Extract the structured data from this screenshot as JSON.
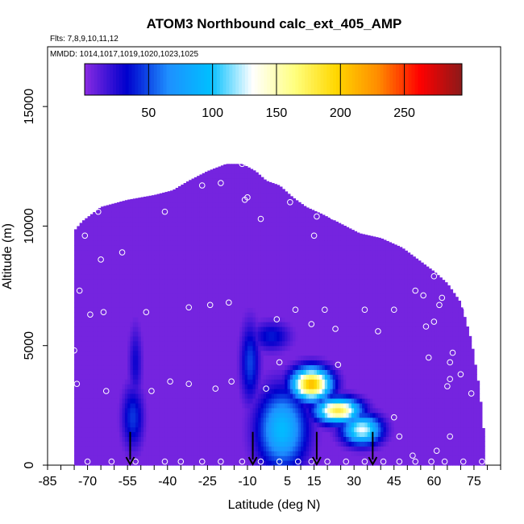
{
  "chart_data": {
    "type": "heatmap",
    "title": "ATOM3 Northbound calc_ext_405_AMP",
    "flights_note": "Flts: 7,8,9,10,11,12",
    "dates_note": "MMDD: 1014,1017,1019,1020,1023,1025",
    "xlabel": "Latitude (deg N)",
    "ylabel": "Altitude (m)",
    "xlim": [
      -85,
      85
    ],
    "ylim": [
      0,
      17500
    ],
    "x_ticks": [
      "-85",
      "-70",
      "-55",
      "-40",
      "-25",
      "-10",
      "5",
      "15",
      "30",
      "45",
      "60",
      "75"
    ],
    "x_tick_values": [
      -85,
      -70,
      -55,
      -40,
      -25,
      -10,
      5,
      15,
      30,
      45,
      60,
      75
    ],
    "y_ticks": [
      "0",
      "5000",
      "10000",
      "15000"
    ],
    "y_tick_values": [
      0,
      5000,
      10000,
      15000
    ],
    "colorbar": {
      "range": [
        0,
        295
      ],
      "tick_labels": [
        "50",
        "100",
        "150",
        "200",
        "250"
      ],
      "tick_values": [
        50,
        100,
        150,
        200,
        250
      ],
      "colors": [
        "#8a2be2",
        "#0000cd",
        "#1e90ff",
        "#00bfff",
        "#ffffff",
        "#ffff80",
        "#ffd700",
        "#ff8c00",
        "#ff0000",
        "#8b1a1a"
      ]
    },
    "background_value": 5,
    "outline": [
      {
        "lat": -75,
        "top": 9800
      },
      {
        "lat": -72,
        "top": 10200
      },
      {
        "lat": -65,
        "top": 10800
      },
      {
        "lat": -55,
        "top": 11100
      },
      {
        "lat": -45,
        "top": 11300
      },
      {
        "lat": -38,
        "top": 11500
      },
      {
        "lat": -32,
        "top": 11900
      },
      {
        "lat": -25,
        "top": 12300
      },
      {
        "lat": -18,
        "top": 12600
      },
      {
        "lat": -12,
        "top": 12600
      },
      {
        "lat": -7,
        "top": 12300
      },
      {
        "lat": -3,
        "top": 11900
      },
      {
        "lat": 2,
        "top": 11700
      },
      {
        "lat": 7,
        "top": 11200
      },
      {
        "lat": 12,
        "top": 10800
      },
      {
        "lat": 18,
        "top": 10500
      },
      {
        "lat": 25,
        "top": 10100
      },
      {
        "lat": 32,
        "top": 9700
      },
      {
        "lat": 40,
        "top": 9500
      },
      {
        "lat": 48,
        "top": 9100
      },
      {
        "lat": 54,
        "top": 8600
      },
      {
        "lat": 60,
        "top": 8100
      },
      {
        "lat": 65,
        "top": 7600
      },
      {
        "lat": 70,
        "top": 6800
      },
      {
        "lat": 74,
        "top": 5200
      },
      {
        "lat": 77,
        "top": 3200
      },
      {
        "lat": 79,
        "top": 1000
      }
    ],
    "plumes": [
      {
        "lat": -53,
        "alt": 2000,
        "dlat": 4,
        "dalt": 1300,
        "value": 45
      },
      {
        "lat": -52,
        "alt": 4300,
        "dlat": 2.5,
        "dalt": 1500,
        "value": 30
      },
      {
        "lat": -9,
        "alt": 4300,
        "dlat": 3.5,
        "dalt": 1600,
        "value": 48
      },
      {
        "lat": -1,
        "alt": 5400,
        "dlat": 7,
        "dalt": 600,
        "value": 38
      },
      {
        "lat": 3,
        "alt": 1500,
        "dlat": 9,
        "dalt": 1600,
        "value": 95
      },
      {
        "lat": 14,
        "alt": 3400,
        "dlat": 7,
        "dalt": 650,
        "value": 210
      },
      {
        "lat": 24,
        "alt": 2300,
        "dlat": 8,
        "dalt": 500,
        "value": 180
      },
      {
        "lat": 33,
        "alt": 1500,
        "dlat": 7,
        "dalt": 600,
        "value": 130
      }
    ],
    "samples": [
      {
        "lat": -75,
        "alt": 4800
      },
      {
        "lat": -74,
        "alt": 3400
      },
      {
        "lat": -73,
        "alt": 7300
      },
      {
        "lat": -71,
        "alt": 9600
      },
      {
        "lat": -69,
        "alt": 6300
      },
      {
        "lat": -66,
        "alt": 10600
      },
      {
        "lat": -65,
        "alt": 8600
      },
      {
        "lat": -64,
        "alt": 6400
      },
      {
        "lat": -63,
        "alt": 3100
      },
      {
        "lat": -57,
        "alt": 8900
      },
      {
        "lat": -48,
        "alt": 6400
      },
      {
        "lat": -46,
        "alt": 3100
      },
      {
        "lat": -41,
        "alt": 10600
      },
      {
        "lat": -39,
        "alt": 3500
      },
      {
        "lat": -32,
        "alt": 6600
      },
      {
        "lat": -32,
        "alt": 3400
      },
      {
        "lat": -27,
        "alt": 11700
      },
      {
        "lat": -24,
        "alt": 6700
      },
      {
        "lat": -22,
        "alt": 3200
      },
      {
        "lat": -20,
        "alt": 11800
      },
      {
        "lat": -17,
        "alt": 6800
      },
      {
        "lat": -16,
        "alt": 3500
      },
      {
        "lat": -12,
        "alt": 12600
      },
      {
        "lat": -11,
        "alt": 11100
      },
      {
        "lat": -10,
        "alt": 11200
      },
      {
        "lat": -5,
        "alt": 10300
      },
      {
        "lat": -3,
        "alt": 3200
      },
      {
        "lat": 1,
        "alt": 6100
      },
      {
        "lat": 2,
        "alt": 4300
      },
      {
        "lat": 6,
        "alt": 11000
      },
      {
        "lat": 8,
        "alt": 6500
      },
      {
        "lat": 15,
        "alt": 9600
      },
      {
        "lat": 16,
        "alt": 10400
      },
      {
        "lat": 14,
        "alt": 5900
      },
      {
        "lat": 19,
        "alt": 6500
      },
      {
        "lat": 22,
        "alt": 10400
      },
      {
        "lat": 23,
        "alt": 5700
      },
      {
        "lat": 24,
        "alt": 4200
      },
      {
        "lat": 34,
        "alt": 6500
      },
      {
        "lat": 39,
        "alt": 5600
      },
      {
        "lat": 45,
        "alt": 6500
      },
      {
        "lat": 45,
        "alt": 2000
      },
      {
        "lat": 47,
        "alt": 1200
      },
      {
        "lat": 52,
        "alt": 400
      },
      {
        "lat": 53,
        "alt": 7300
      },
      {
        "lat": 56,
        "alt": 7100
      },
      {
        "lat": 57,
        "alt": 5800
      },
      {
        "lat": 58,
        "alt": 4500
      },
      {
        "lat": 60,
        "alt": 7900
      },
      {
        "lat": 60,
        "alt": 6000
      },
      {
        "lat": 61,
        "alt": 600
      },
      {
        "lat": 62,
        "alt": 6700
      },
      {
        "lat": 63,
        "alt": 7000
      },
      {
        "lat": 65,
        "alt": 3300
      },
      {
        "lat": 66,
        "alt": 4300
      },
      {
        "lat": 66,
        "alt": 3600
      },
      {
        "lat": 67,
        "alt": 8500
      },
      {
        "lat": 67,
        "alt": 4700
      },
      {
        "lat": 70,
        "alt": 3800
      },
      {
        "lat": 72,
        "alt": 6600
      },
      {
        "lat": 74,
        "alt": 3000
      },
      {
        "lat": 66,
        "alt": 1200
      },
      {
        "lat": -77,
        "alt": 150
      },
      {
        "lat": -70,
        "alt": 150
      },
      {
        "lat": -61,
        "alt": 150
      },
      {
        "lat": -52,
        "alt": 150
      },
      {
        "lat": -41,
        "alt": 150
      },
      {
        "lat": -35,
        "alt": 150
      },
      {
        "lat": -27,
        "alt": 150
      },
      {
        "lat": -20,
        "alt": 150
      },
      {
        "lat": -12,
        "alt": 150
      },
      {
        "lat": -5,
        "alt": 150
      },
      {
        "lat": 2,
        "alt": 150
      },
      {
        "lat": 9,
        "alt": 150
      },
      {
        "lat": 14,
        "alt": 150
      },
      {
        "lat": 20,
        "alt": 150
      },
      {
        "lat": 27,
        "alt": 150
      },
      {
        "lat": 34,
        "alt": 150
      },
      {
        "lat": 41,
        "alt": 150
      },
      {
        "lat": 47,
        "alt": 150
      },
      {
        "lat": 53,
        "alt": 150
      },
      {
        "lat": 59,
        "alt": 150
      },
      {
        "lat": 64,
        "alt": 150
      },
      {
        "lat": 71,
        "alt": 150
      },
      {
        "lat": 78,
        "alt": 150
      }
    ],
    "profile_arrows": [
      -54,
      -8,
      16,
      37
    ]
  }
}
